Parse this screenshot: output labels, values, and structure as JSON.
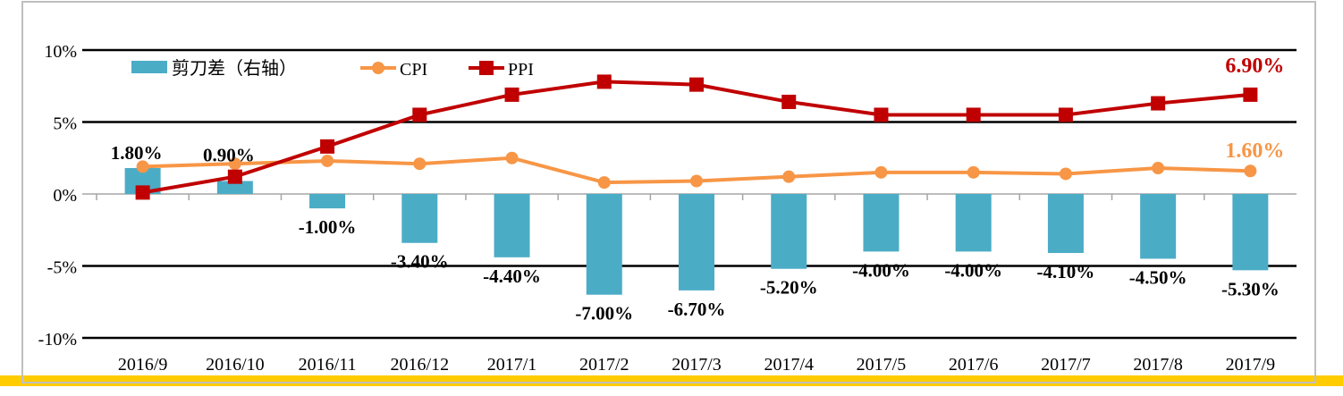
{
  "chart_data": {
    "type": "bar+line",
    "categories": [
      "2016/9",
      "2016/10",
      "2016/11",
      "2016/12",
      "2017/1",
      "2017/2",
      "2017/3",
      "2017/4",
      "2017/5",
      "2017/6",
      "2017/7",
      "2017/8",
      "2017/9"
    ],
    "series": [
      {
        "name": "剪刀差（右轴）",
        "type": "bar",
        "color": "#4BACC6",
        "values": [
          1.8,
          0.9,
          -1.0,
          -3.4,
          -4.4,
          -7.0,
          -6.7,
          -5.2,
          -4.0,
          -4.0,
          -4.1,
          -4.5,
          -5.3
        ],
        "labels": [
          "1.80%",
          "0.90%",
          "-1.00%",
          "-3.40%",
          "-4.40%",
          "-7.00%",
          "-6.70%",
          "-5.20%",
          "-4.00%",
          "-4.00%",
          "-4.10%",
          "-4.50%",
          "-5.30%"
        ]
      },
      {
        "name": "CPI",
        "type": "line",
        "marker": "circle",
        "color": "#F79646",
        "values": [
          1.9,
          2.1,
          2.3,
          2.1,
          2.5,
          0.8,
          0.9,
          1.2,
          1.5,
          1.5,
          1.4,
          1.8,
          1.6
        ],
        "end_label": "1.60%"
      },
      {
        "name": "PPI",
        "type": "line",
        "marker": "square",
        "color": "#C00000",
        "values": [
          0.1,
          1.2,
          3.3,
          5.5,
          6.9,
          7.8,
          7.6,
          6.4,
          5.5,
          5.5,
          5.5,
          6.3,
          6.9
        ],
        "end_label": "6.90%"
      }
    ],
    "ylim": [
      -10,
      10
    ],
    "yticks": [
      10,
      5,
      0,
      -5,
      -10
    ],
    "ytick_labels": [
      "10%",
      "5%",
      "0%",
      "-5%",
      "-10%"
    ],
    "grid": true,
    "legend": "top-left"
  }
}
